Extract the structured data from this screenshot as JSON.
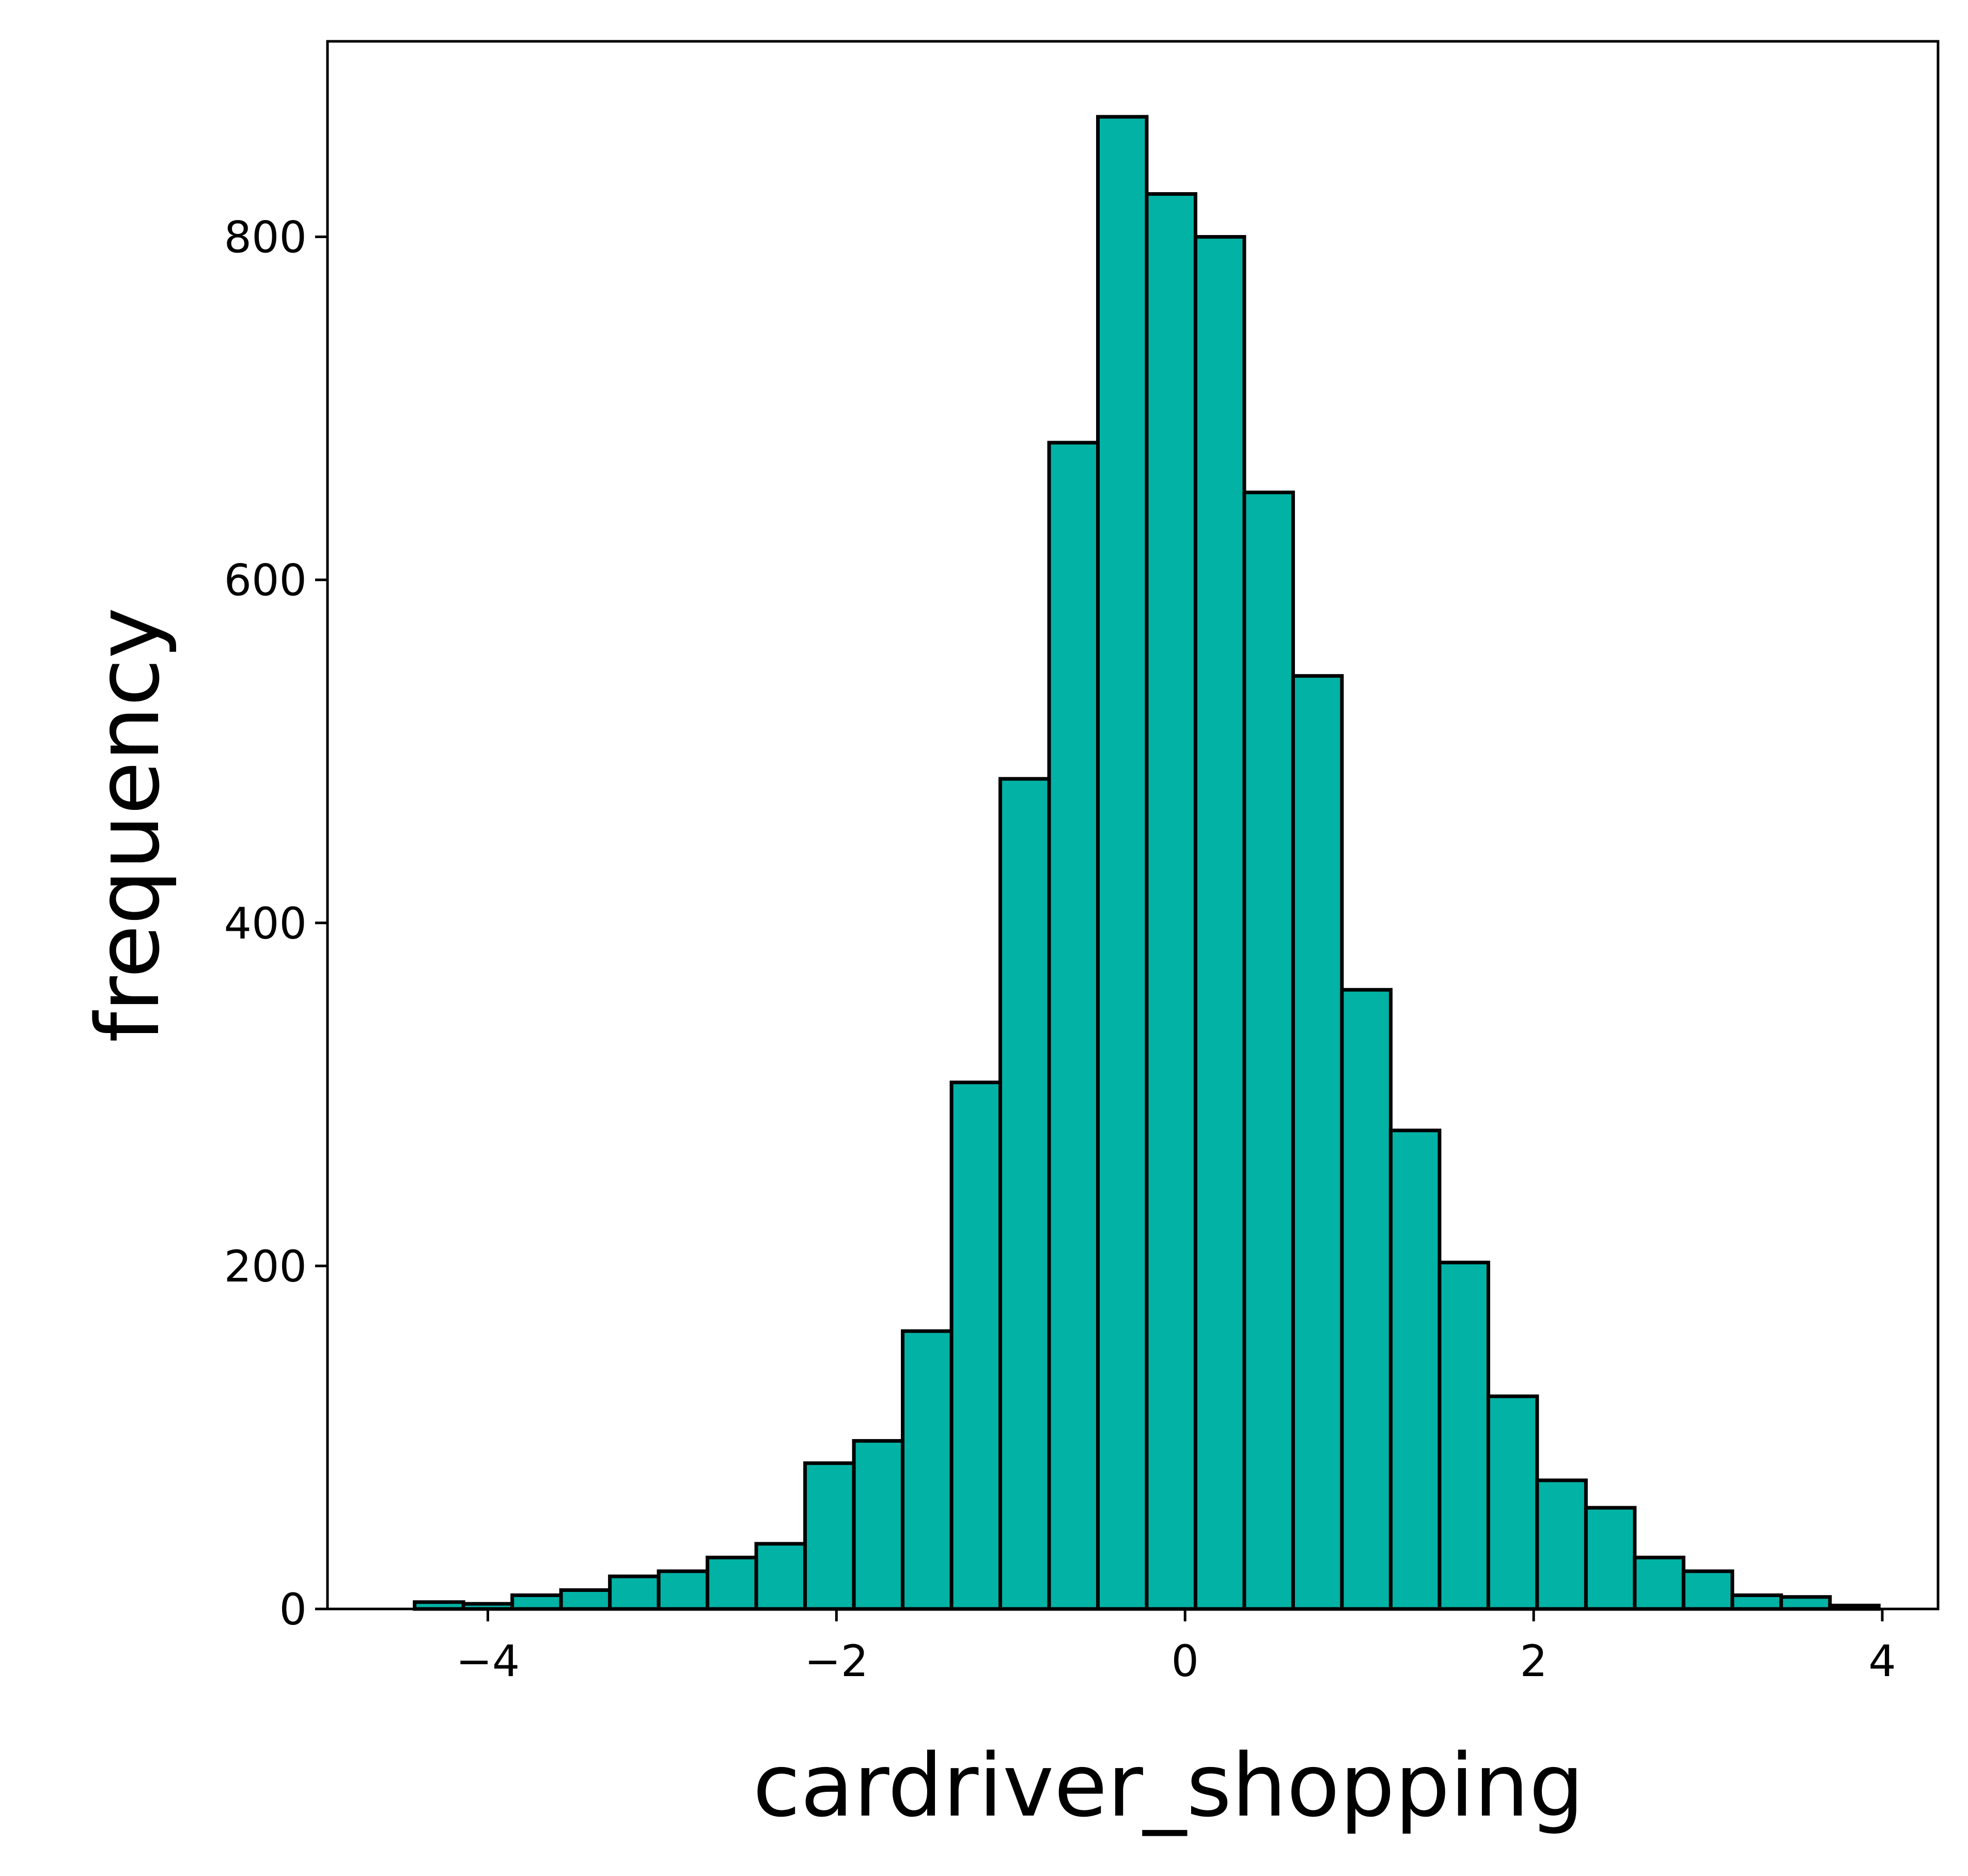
{
  "chart_data": {
    "type": "bar",
    "title": "",
    "xlabel": "cardriver_shopping",
    "ylabel": "frequency",
    "bar_color": "#02b2a5",
    "edge_color": "#000000",
    "grid": false,
    "legend": "none",
    "xlim": [
      -4.92,
      4.32
    ],
    "ylim": [
      0,
      914
    ],
    "x_ticks": [
      -4,
      -2,
      0,
      2,
      4
    ],
    "x_tick_labels": [
      "−4",
      "−2",
      "0",
      "2",
      "4"
    ],
    "y_ticks": [
      0,
      200,
      400,
      600,
      800
    ],
    "y_tick_labels": [
      "0",
      "200",
      "400",
      "600",
      "800"
    ],
    "bin_edges": [
      -4.42,
      -4.14,
      -3.86,
      -3.58,
      -3.3,
      -3.02,
      -2.74,
      -2.46,
      -2.18,
      -1.9,
      -1.62,
      -1.34,
      -1.06,
      -0.78,
      -0.5,
      -0.22,
      0.06,
      0.34,
      0.62,
      0.9,
      1.18,
      1.46,
      1.74,
      2.02,
      2.3,
      2.58,
      2.86,
      3.14,
      3.42,
      3.7,
      3.98
    ],
    "values": [
      4,
      3,
      8,
      11,
      19,
      22,
      30,
      38,
      85,
      98,
      162,
      307,
      484,
      680,
      870,
      825,
      800,
      651,
      544,
      361,
      279,
      202,
      124,
      75,
      59,
      30,
      22,
      8,
      7,
      2
    ]
  }
}
